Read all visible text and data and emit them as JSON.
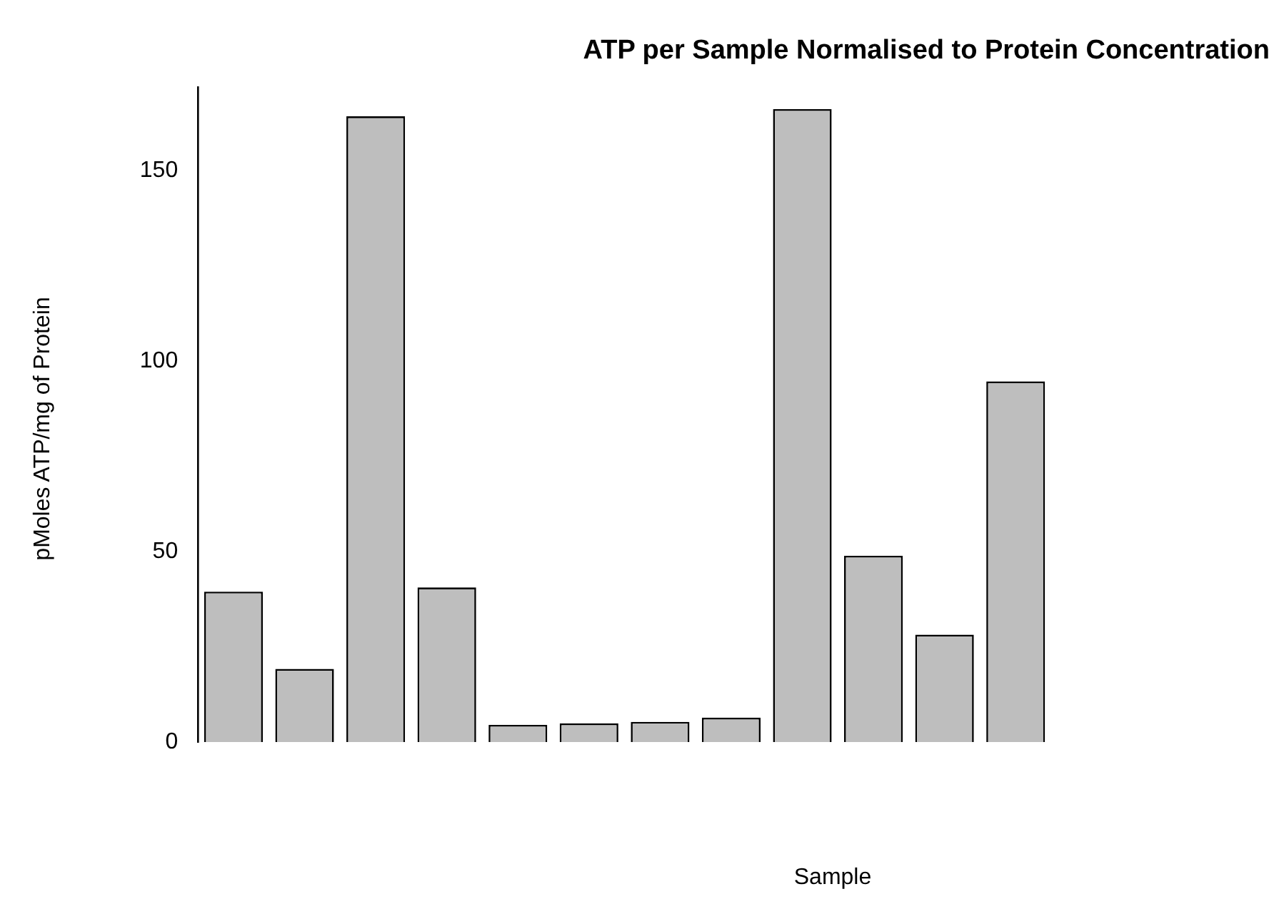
{
  "chart_data": {
    "type": "bar",
    "title": "ATP per Sample Normalised to Protein Concentration",
    "xlabel": "Sample",
    "ylabel": "pMoles ATP/mg of Protein",
    "categories": [
      null,
      null,
      null,
      null,
      null,
      null,
      null,
      null,
      null,
      null,
      null,
      null
    ],
    "values": [
      39.5,
      19.2,
      164.3,
      40.6,
      4.5,
      4.9,
      5.3,
      6.4,
      166.2,
      48.9,
      28.2,
      94.7
    ],
    "color": "#bebebe",
    "ylim": [
      0,
      172
    ],
    "yticks": [
      0,
      50,
      100,
      150
    ],
    "grid": false,
    "legend": false
  }
}
